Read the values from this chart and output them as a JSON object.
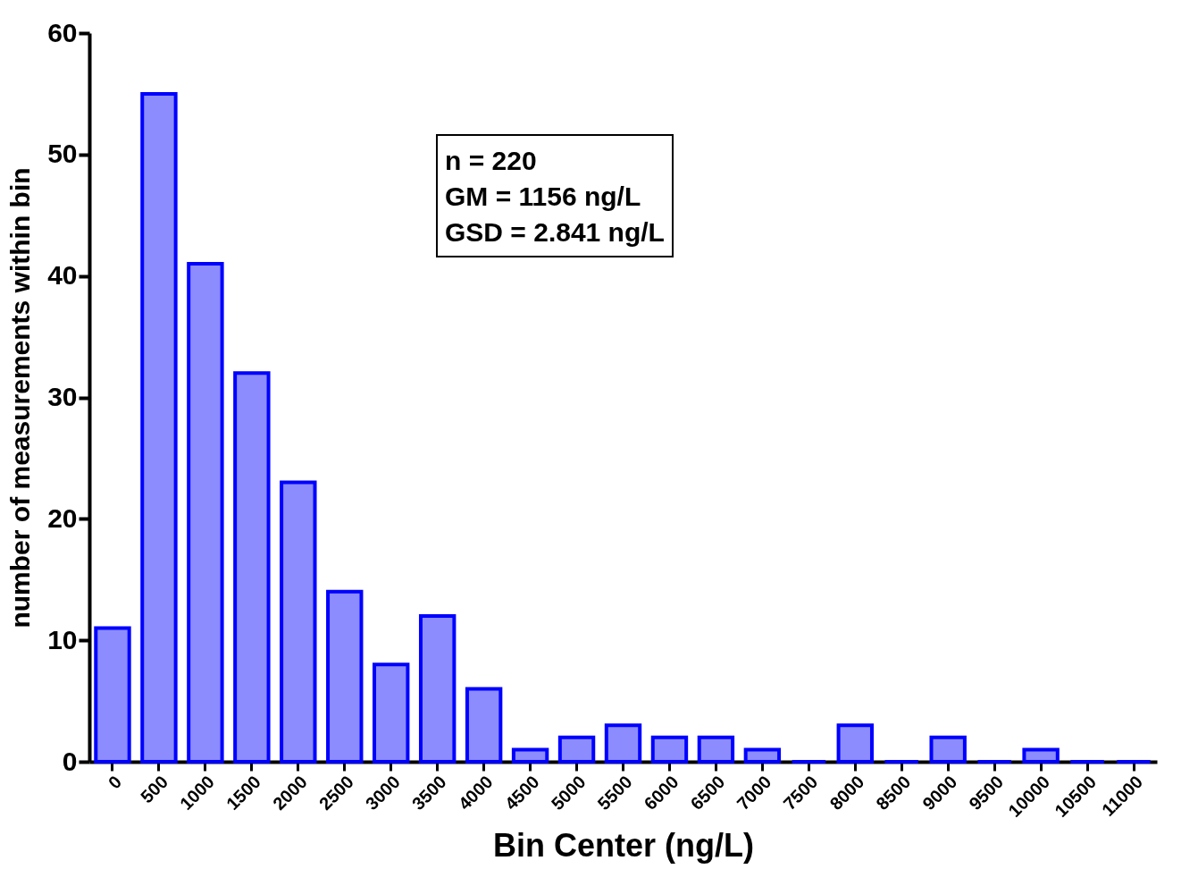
{
  "chart_data": {
    "type": "histogram",
    "xlabel": "Bin Center (ng/L)",
    "ylabel": "number of measurements within bin",
    "categories": [
      "0",
      "500",
      "1000",
      "1500",
      "2000",
      "2500",
      "3000",
      "3500",
      "4000",
      "4500",
      "5000",
      "5500",
      "6000",
      "6500",
      "7000",
      "7500",
      "8000",
      "8500",
      "9000",
      "9500",
      "10000",
      "10500",
      "11000"
    ],
    "series": [
      {
        "color": "#0000ff",
        "values": [
          11,
          55,
          41,
          32,
          23,
          14,
          8,
          12,
          6,
          1,
          2,
          3,
          2,
          2,
          1,
          0,
          3,
          0,
          2,
          0,
          1,
          0,
          0
        ]
      }
    ],
    "ylim": [
      0,
      60
    ],
    "yticks": [
      0,
      10,
      20,
      30,
      40,
      50,
      60
    ],
    "grid": false,
    "annotations": [
      "n = 220",
      "GM = 1156 ng/L",
      "GSD = 2.841 ng/L"
    ]
  }
}
